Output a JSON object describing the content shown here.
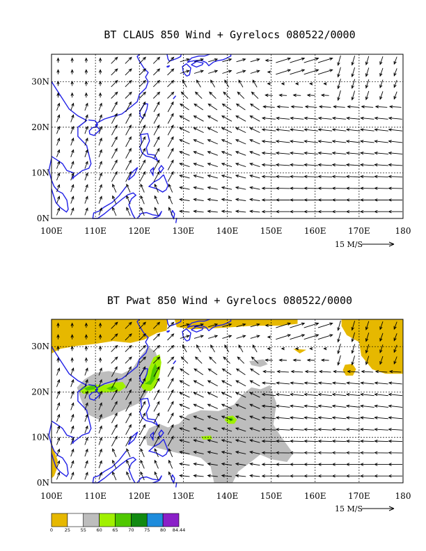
{
  "colors": {
    "coast": "#1f1fe6",
    "arrow": "#000000",
    "grid": "#000000",
    "pwat": [
      "#e6b800",
      "#ffffff",
      "#bdbdbd",
      "#a0f000",
      "#50c800",
      "#118a11",
      "#1e8cdc",
      "#8a1fc8"
    ]
  },
  "chart_data": [
    {
      "type": "map",
      "title": "BT CLAUS 850 Wind + Gyrelocs 080522/0000",
      "xlim": [
        100,
        180
      ],
      "ylim": [
        0,
        36
      ],
      "x_ticks": [
        "100E",
        "110E",
        "120E",
        "130E",
        "140E",
        "150E",
        "160E",
        "170E",
        "180"
      ],
      "y_ticks": [
        "0N",
        "10N",
        "20N",
        "30N"
      ],
      "grid": true,
      "vector_scale_label": "15 M/S"
    },
    {
      "type": "map",
      "title": "BT Pwat 850 Wind + Gyrelocs 080522/0000",
      "xlim": [
        100,
        180
      ],
      "ylim": [
        0,
        36
      ],
      "x_ticks": [
        "100E",
        "110E",
        "120E",
        "130E",
        "140E",
        "150E",
        "160E",
        "170E",
        "180"
      ],
      "y_ticks": [
        "0N",
        "10N",
        "20N",
        "30N"
      ],
      "grid": true,
      "vector_scale_label": "15 M/S",
      "colorbar": {
        "labels": [
          "0",
          "25",
          "55",
          "60",
          "65",
          "70",
          "75",
          "80",
          "84.44"
        ],
        "boundaries": [
          0,
          25,
          55,
          60,
          65,
          70,
          75,
          80,
          84.44
        ]
      }
    }
  ]
}
